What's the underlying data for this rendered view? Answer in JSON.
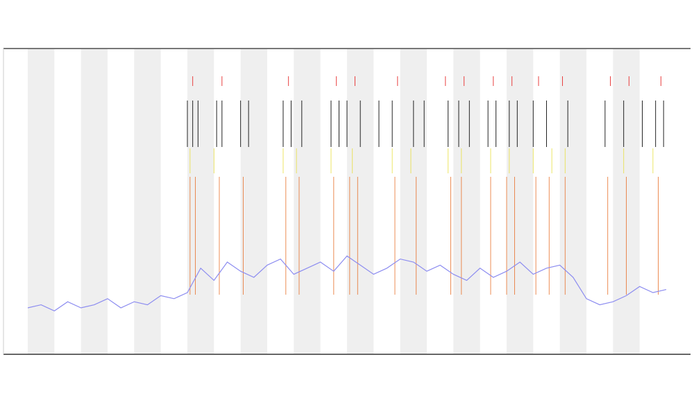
{
  "chart_data": {
    "type": "line",
    "xlim": [
      0,
      24
    ],
    "ylim": [
      0,
      100
    ],
    "x": [
      0,
      0.5,
      1,
      1.5,
      2,
      2.5,
      3,
      3.5,
      4,
      4.5,
      5,
      5.5,
      6,
      6.5,
      7,
      7.5,
      8,
      8.5,
      9,
      9.5,
      10,
      10.5,
      11,
      11.5,
      12,
      12.5,
      13,
      13.5,
      14,
      14.5,
      15,
      15.5,
      16,
      16.5,
      17,
      17.5,
      18,
      18.5,
      19,
      19.5,
      20,
      20.5,
      21,
      21.5,
      22,
      22.5,
      23,
      23.5,
      24
    ],
    "series": [
      {
        "color": "#8c8cf0",
        "values": [
          15,
          16,
          14,
          17,
          15,
          16,
          18,
          15,
          17,
          16,
          19,
          18,
          20,
          28,
          24,
          30,
          27,
          25,
          29,
          31,
          26,
          28,
          30,
          27,
          32,
          29,
          26,
          28,
          31,
          30,
          27,
          29,
          26,
          24,
          28,
          25,
          27,
          30,
          26,
          28,
          29,
          25,
          18,
          16,
          17,
          19,
          22,
          20,
          21
        ]
      }
    ],
    "event_tracks": [
      {
        "color": "#e8702a",
        "x": [
          6.1,
          6.3,
          7.2,
          8.1,
          9.7,
          10.2,
          11.5,
          12.1,
          12.4,
          13.8,
          14.6,
          15.9,
          16.3,
          17.4,
          18.0,
          18.3,
          19.1,
          19.6,
          20.2,
          21.8,
          22.5,
          23.7
        ]
      },
      {
        "color": "#222222",
        "x": [
          6.0,
          6.2,
          6.4,
          7.1,
          7.3,
          8.0,
          8.3,
          9.6,
          9.9,
          10.3,
          11.4,
          11.7,
          12.0,
          12.5,
          13.2,
          13.7,
          14.5,
          14.9,
          15.8,
          16.2,
          16.6,
          17.3,
          17.6,
          18.1,
          18.4,
          19.0,
          19.5,
          20.3,
          21.7,
          22.4,
          23.1,
          23.6,
          23.9
        ]
      },
      {
        "color": "#e84040",
        "x": [
          6.2,
          7.3,
          9.8,
          11.6,
          12.3,
          13.9,
          15.7,
          16.4,
          17.5,
          18.2,
          19.2,
          20.1,
          21.9,
          22.6,
          23.8
        ]
      },
      {
        "color": "#e8e040",
        "x": [
          6.1,
          7.0,
          9.6,
          10.1,
          11.4,
          12.2,
          13.7,
          14.4,
          15.8,
          16.3,
          17.4,
          18.1,
          19.0,
          19.7,
          20.2,
          22.4,
          23.5
        ]
      }
    ]
  }
}
